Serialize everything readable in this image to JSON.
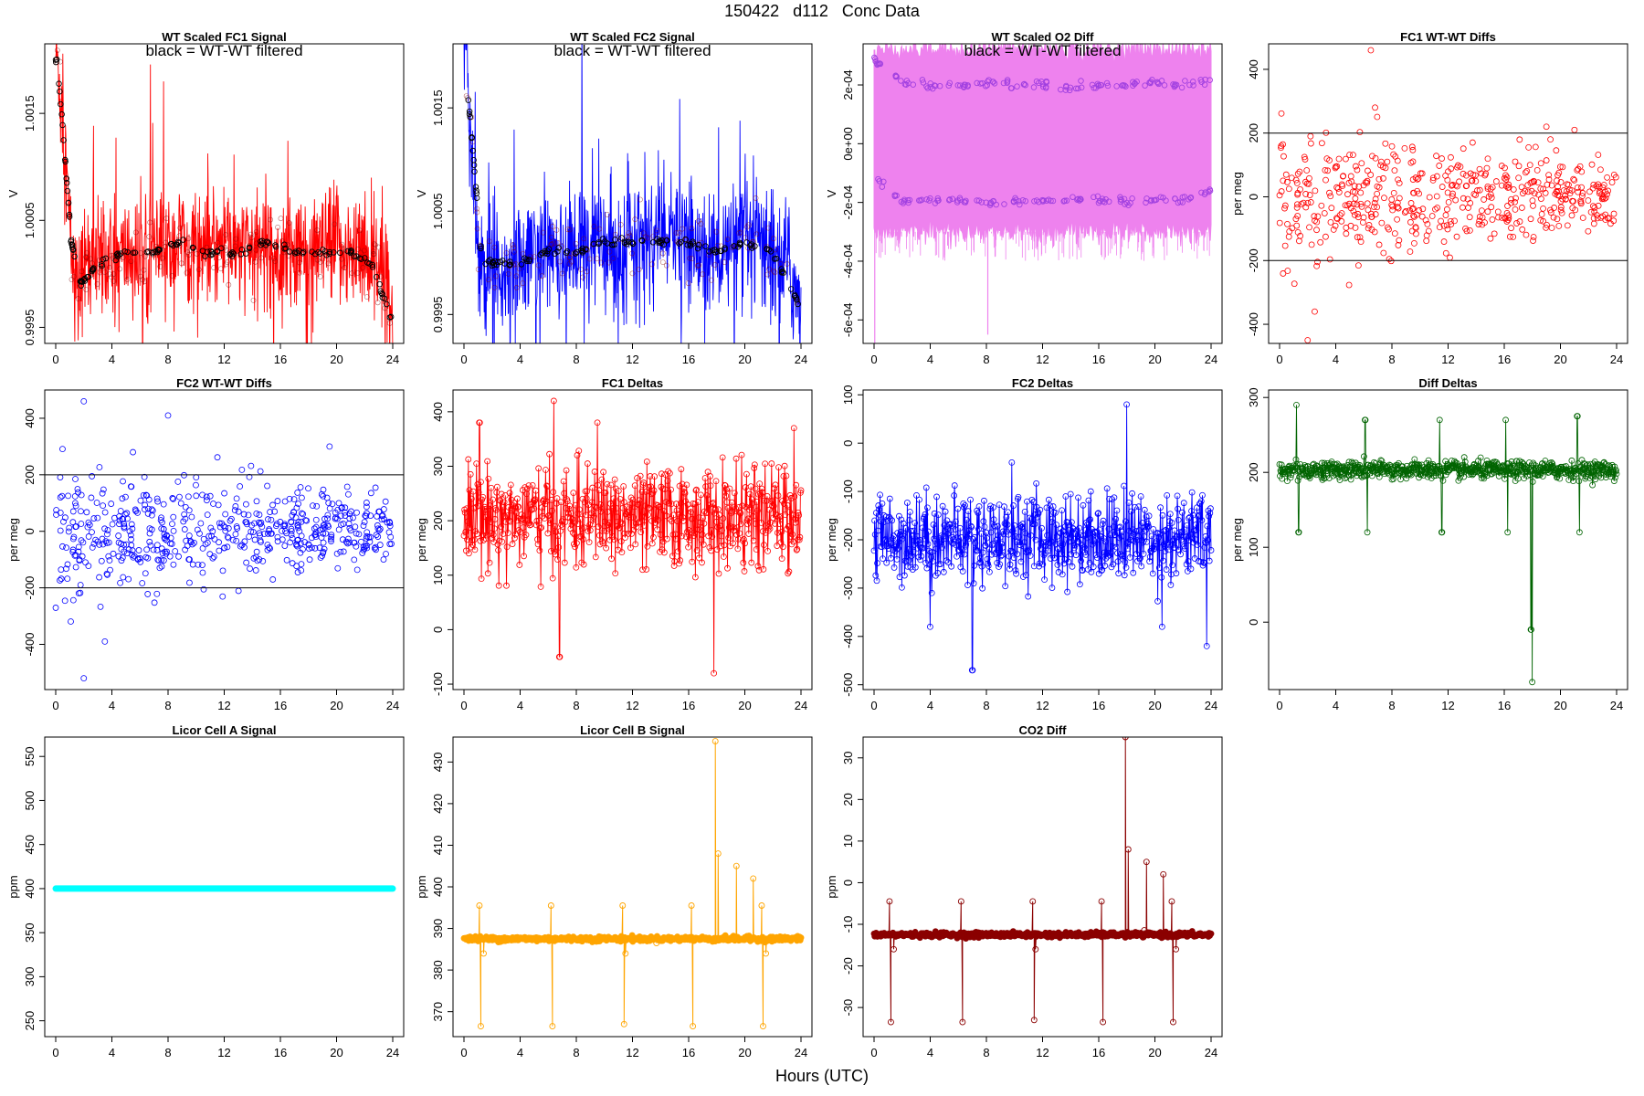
{
  "page": {
    "title": "150422   d112   Conc Data",
    "xlabel": "Hours (UTC)"
  },
  "chart_data": [
    {
      "id": "fc1-signal",
      "type": "line",
      "title": "WT Scaled FC1 Signal",
      "subtitle": "black = WT-WT filtered",
      "ylabel": "V",
      "x_ticks": [
        0,
        4,
        8,
        12,
        16,
        20,
        24
      ],
      "xlim": [
        0,
        24
      ],
      "y_ticks": [
        0.9995,
        1.0005,
        1.0015
      ],
      "y_tick_labels": [
        "0.9995",
        "1.0005",
        "1.0015"
      ],
      "ylim": [
        0.99935,
        1.00215
      ],
      "series": [
        {
          "name": "FC1 signal",
          "color": "#ff0000",
          "style": "dense",
          "x": [
            0,
            0.2,
            0.5,
            0.8,
            1.0,
            1.3,
            1.6,
            2,
            3,
            4,
            5,
            6,
            7,
            8,
            9,
            10,
            11,
            12,
            13,
            14,
            15,
            16,
            17,
            18,
            19,
            20,
            21,
            22,
            23,
            23.5,
            24
          ],
          "y": [
            1.0021,
            1.0019,
            1.0014,
            1.0009,
            1.0004,
            1.0,
            0.9998,
            1.0001,
            1.0001,
            1.0001,
            1.0002,
            1.0001,
            1.0002,
            1.0002,
            1.0003,
            1.0002,
            1.0002,
            1.0003,
            1.0002,
            1.0002,
            1.0003,
            1.0002,
            1.0002,
            1.0002,
            1.0002,
            1.0003,
            1.0002,
            1.0002,
            1.0001,
            0.9999,
            0.9996
          ],
          "noise": 0.00045
        },
        {
          "name": "WT-WT filtered",
          "color": "#000000",
          "style": "points",
          "x": [
            0.1,
            0.6,
            1.1,
            1.8,
            3,
            5,
            7,
            9,
            11,
            13,
            15,
            17,
            19,
            21,
            22.5,
            23.8
          ],
          "y": [
            1.002,
            1.0012,
            1.0003,
            0.9999,
            1.0001,
            1.0002,
            1.0002,
            1.0003,
            1.0002,
            1.0002,
            1.0003,
            1.0002,
            1.0002,
            1.0002,
            1.0001,
            0.9996
          ]
        }
      ]
    },
    {
      "id": "fc2-signal",
      "type": "line",
      "title": "WT Scaled FC2 Signal",
      "subtitle": "black = WT-WT filtered",
      "ylabel": "V",
      "x_ticks": [
        0,
        4,
        8,
        12,
        16,
        20,
        24
      ],
      "xlim": [
        0,
        24
      ],
      "y_ticks": [
        0.9995,
        1.0005,
        1.0015
      ],
      "y_tick_labels": [
        "0.9995",
        "1.0005",
        "1.0015"
      ],
      "ylim": [
        0.99922,
        1.00212
      ],
      "series": [
        {
          "name": "FC2 signal",
          "color": "#0000ff",
          "style": "dense",
          "x": [
            0,
            0.2,
            0.5,
            0.8,
            1.0,
            1.3,
            1.6,
            2,
            3,
            4,
            5,
            6,
            7,
            8,
            9,
            10,
            11,
            12,
            13,
            14,
            15,
            16,
            17,
            18,
            19,
            20,
            21,
            22,
            23,
            23.5,
            24
          ],
          "y": [
            1.0021,
            1.0018,
            1.0012,
            1.0006,
            1.0002,
            0.9999,
            0.9998,
            1.0,
            1.0,
            1.0,
            1.0001,
            1.0001,
            1.0001,
            1.0001,
            1.0002,
            1.0002,
            1.0001,
            1.0002,
            1.0002,
            1.0002,
            1.0002,
            1.0002,
            1.0001,
            1.0001,
            1.0001,
            1.0002,
            1.0002,
            1.0001,
            1.0,
            0.9998,
            0.9995
          ],
          "noise": 0.0005
        },
        {
          "name": "WT-WT filtered",
          "color": "#000000",
          "style": "points",
          "x": [
            0.1,
            0.7,
            1.3,
            2.5,
            4,
            6,
            8,
            10,
            12,
            14,
            16,
            18,
            20,
            22,
            23.8
          ],
          "y": [
            1.0019,
            1.001,
            1.0,
            1.0,
            1.0,
            1.0001,
            1.0001,
            1.0002,
            1.0002,
            1.0002,
            1.0002,
            1.0001,
            1.0002,
            1.0001,
            0.9996
          ]
        }
      ]
    },
    {
      "id": "o2-diff",
      "type": "line",
      "title": "WT Scaled O2 Diff",
      "subtitle": "black = WT-WT filtered",
      "ylabel": "V",
      "x_ticks": [
        0,
        4,
        8,
        12,
        16,
        20,
        24
      ],
      "xlim": [
        0,
        24
      ],
      "y_ticks": [
        -0.0006,
        -0.0004,
        -0.0002,
        0,
        0.0002
      ],
      "y_tick_labels": [
        "-6e-04",
        "-4e-04",
        "-2e-04",
        "0e+00",
        "2e-04"
      ],
      "ylim": [
        -0.00068,
        0.00034
      ],
      "series": [
        {
          "name": "O2 diff band",
          "color": "#ee82ee",
          "style": "band",
          "band": [
            -0.0003,
            0.00032
          ]
        },
        {
          "name": "upper level",
          "color": "#a040e0",
          "style": "points",
          "x": [
            0,
            2,
            4,
            6,
            8,
            10,
            12,
            14,
            16,
            18,
            20,
            22,
            24
          ],
          "y": [
            0.00028,
            0.00021,
            0.0002,
            0.0002,
            0.00021,
            0.0002,
            0.0002,
            0.00019,
            0.0002,
            0.0002,
            0.00021,
            0.0002,
            0.00021
          ]
        },
        {
          "name": "lower level",
          "color": "#a040e0",
          "style": "points",
          "x": [
            0,
            2,
            4,
            6,
            8,
            10,
            12,
            14,
            16,
            18,
            20,
            22,
            24
          ],
          "y": [
            -0.00011,
            -0.0002,
            -0.00019,
            -0.00019,
            -0.0002,
            -0.0002,
            -0.00019,
            -0.00019,
            -0.00019,
            -0.0002,
            -0.00019,
            -0.00019,
            -0.00016
          ]
        }
      ]
    },
    {
      "id": "fc1-wtwt",
      "type": "scatter",
      "title": "FC1 WT-WT Diffs",
      "ylabel": "per meg",
      "x_ticks": [
        0,
        4,
        8,
        12,
        16,
        20,
        24
      ],
      "xlim": [
        0,
        24
      ],
      "y_ticks": [
        -400,
        -200,
        0,
        200,
        400
      ],
      "y_tick_labels": [
        "-400",
        "-200",
        "0",
        "200",
        "400"
      ],
      "ylim": [
        -460,
        480
      ],
      "hlines": [
        200,
        -200
      ],
      "series": [
        {
          "name": "FC1 WT-WT",
          "color": "#ff0000",
          "style": "scatter",
          "n": 520,
          "center": 0,
          "spread": 90,
          "outliers": [
            [
              6.5,
              460
            ],
            [
              2,
              -450
            ],
            [
              2.5,
              -360
            ],
            [
              19,
              220
            ],
            [
              21,
              210
            ],
            [
              6.8,
              280
            ]
          ]
        }
      ]
    },
    {
      "id": "fc2-wtwt",
      "type": "scatter",
      "title": "FC2 WT-WT Diffs",
      "ylabel": "per meg",
      "x_ticks": [
        0,
        4,
        8,
        12,
        16,
        20,
        24
      ],
      "xlim": [
        0,
        24
      ],
      "y_ticks": [
        -400,
        -200,
        0,
        200,
        400
      ],
      "y_tick_labels": [
        "-400",
        "-200",
        "0",
        "200",
        "400"
      ],
      "ylim": [
        -560,
        500
      ],
      "hlines": [
        200,
        -200
      ],
      "series": [
        {
          "name": "FC2 WT-WT",
          "color": "#0000ff",
          "style": "scatter",
          "n": 560,
          "center": 0,
          "spread": 90,
          "outliers": [
            [
              2,
              460
            ],
            [
              8,
              410
            ],
            [
              2,
              -520
            ],
            [
              3.5,
              -390
            ],
            [
              19.5,
              300
            ],
            [
              5.5,
              280
            ]
          ]
        }
      ]
    },
    {
      "id": "fc1-deltas",
      "type": "line",
      "title": "FC1 Deltas",
      "ylabel": "per meg",
      "x_ticks": [
        0,
        4,
        8,
        12,
        16,
        20,
        24
      ],
      "xlim": [
        0,
        24
      ],
      "y_ticks": [
        -100,
        0,
        100,
        200,
        300,
        400
      ],
      "y_tick_labels": [
        "-100",
        "0",
        "100",
        "200",
        "300",
        "400"
      ],
      "ylim": [
        -110,
        440
      ],
      "series": [
        {
          "name": "FC1 deltas",
          "color": "#ff0000",
          "style": "noisyline",
          "n": 620,
          "center": 205,
          "spread": 45,
          "spikes": [
            [
              6.4,
              420
            ],
            [
              17.8,
              -80
            ],
            [
              6.8,
              -50
            ],
            [
              23.5,
              370
            ],
            [
              1.1,
              380
            ],
            [
              9.5,
              380
            ]
          ]
        }
      ]
    },
    {
      "id": "fc2-deltas",
      "type": "line",
      "title": "FC2 Deltas",
      "ylabel": "per meg",
      "x_ticks": [
        0,
        4,
        8,
        12,
        16,
        20,
        24
      ],
      "xlim": [
        0,
        24
      ],
      "y_ticks": [
        -500,
        -400,
        -300,
        -200,
        -100,
        0,
        100
      ],
      "y_tick_labels": [
        "-500",
        "-400",
        "-300",
        "-200",
        "-100",
        "0",
        "100"
      ],
      "ylim": [
        -510,
        110
      ],
      "series": [
        {
          "name": "FC2 deltas",
          "color": "#0000ff",
          "style": "noisyline",
          "n": 620,
          "center": -195,
          "spread": 45,
          "spikes": [
            [
              18,
              80
            ],
            [
              7,
              -470
            ],
            [
              23.7,
              -420
            ],
            [
              4,
              -380
            ],
            [
              20.5,
              -380
            ],
            [
              9.8,
              -40
            ]
          ]
        }
      ]
    },
    {
      "id": "diff-deltas",
      "type": "line",
      "title": "Diff Deltas",
      "ylabel": "per meg",
      "x_ticks": [
        0,
        4,
        8,
        12,
        16,
        20,
        24
      ],
      "xlim": [
        0,
        24
      ],
      "y_ticks": [
        0,
        100,
        200,
        300
      ],
      "y_tick_labels": [
        "0",
        "100",
        "200",
        "300"
      ],
      "ylim": [
        -90,
        310
      ],
      "series": [
        {
          "name": "Diff deltas",
          "color": "#006400",
          "style": "noisyline",
          "n": 700,
          "center": 203,
          "spread": 6,
          "spikes": [
            [
              1.2,
              290
            ],
            [
              1.35,
              120
            ],
            [
              6.1,
              270
            ],
            [
              6.25,
              120
            ],
            [
              11.4,
              270
            ],
            [
              11.55,
              120
            ],
            [
              16.1,
              270
            ],
            [
              16.25,
              120
            ],
            [
              21.2,
              275
            ],
            [
              21.35,
              120
            ],
            [
              18,
              -80
            ],
            [
              17.9,
              -10
            ]
          ]
        }
      ]
    },
    {
      "id": "licor-a",
      "type": "line",
      "title": "Licor Cell A Signal",
      "ylabel": "ppm",
      "x_ticks": [
        0,
        4,
        8,
        12,
        16,
        20,
        24
      ],
      "xlim": [
        0,
        24
      ],
      "y_ticks": [
        250,
        300,
        350,
        400,
        450,
        500,
        550
      ],
      "y_tick_labels": [
        "250",
        "300",
        "350",
        "400",
        "450",
        "500",
        "550"
      ],
      "ylim": [
        232,
        572
      ],
      "series": [
        {
          "name": "Cell A",
          "color": "#00ffff",
          "style": "flat",
          "value": 400
        }
      ]
    },
    {
      "id": "licor-b",
      "type": "line",
      "title": "Licor Cell B Signal",
      "ylabel": "ppm",
      "x_ticks": [
        0,
        4,
        8,
        12,
        16,
        20,
        24
      ],
      "xlim": [
        0,
        24
      ],
      "y_ticks": [
        370,
        380,
        390,
        400,
        410,
        420,
        430
      ],
      "y_tick_labels": [
        "370",
        "380",
        "390",
        "400",
        "410",
        "420",
        "430"
      ],
      "ylim": [
        364,
        436
      ],
      "series": [
        {
          "name": "Cell B",
          "color": "#ffa500",
          "style": "baselinespikes",
          "center": 387.5,
          "spread": 0.3,
          "spikes": [
            [
              1.1,
              395.5
            ],
            [
              1.2,
              366.5
            ],
            [
              1.4,
              384
            ],
            [
              6.2,
              395.5
            ],
            [
              6.3,
              366.5
            ],
            [
              11.3,
              395.5
            ],
            [
              11.4,
              367
            ],
            [
              11.5,
              384
            ],
            [
              16.2,
              395.5
            ],
            [
              16.3,
              366.5
            ],
            [
              17.9,
              435
            ],
            [
              18.1,
              408
            ],
            [
              19.4,
              405
            ],
            [
              20.6,
              402
            ],
            [
              21.2,
              395.5
            ],
            [
              21.3,
              366.5
            ],
            [
              21.5,
              384
            ]
          ]
        }
      ]
    },
    {
      "id": "co2-diff",
      "type": "line",
      "title": "CO2 Diff",
      "ylabel": "ppm",
      "x_ticks": [
        0,
        4,
        8,
        12,
        16,
        20,
        24
      ],
      "xlim": [
        0,
        24
      ],
      "y_ticks": [
        -30,
        -20,
        -10,
        0,
        10,
        20,
        30
      ],
      "y_tick_labels": [
        "-30",
        "-20",
        "-10",
        "0",
        "10",
        "20",
        "30"
      ],
      "ylim": [
        -37,
        35
      ],
      "series": [
        {
          "name": "CO2 diff",
          "color": "#8b0000",
          "style": "baselinespikes",
          "center": -12.5,
          "spread": 0.3,
          "spikes": [
            [
              1.1,
              -4.5
            ],
            [
              1.2,
              -33.5
            ],
            [
              1.4,
              -16
            ],
            [
              6.2,
              -4.5
            ],
            [
              6.3,
              -33.5
            ],
            [
              11.3,
              -4.5
            ],
            [
              11.4,
              -33
            ],
            [
              11.5,
              -16
            ],
            [
              16.2,
              -4.5
            ],
            [
              16.3,
              -33.5
            ],
            [
              17.9,
              35
            ],
            [
              18.1,
              8
            ],
            [
              19.4,
              5
            ],
            [
              20.6,
              2
            ],
            [
              21.2,
              -4.5
            ],
            [
              21.3,
              -33.5
            ],
            [
              21.5,
              -16
            ]
          ]
        }
      ]
    }
  ]
}
